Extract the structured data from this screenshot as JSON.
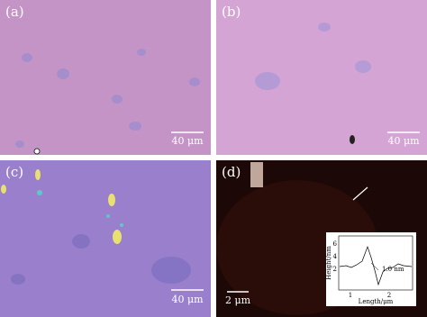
{
  "panels": [
    {
      "label": "(a)",
      "scale_bar": "40 μm"
    },
    {
      "label": "(b)",
      "scale_bar": "40 μm"
    },
    {
      "label": "(c)",
      "scale_bar": "40 μm"
    },
    {
      "label": "(d)",
      "scale_bar": "2 μm",
      "inset": {
        "y_label": "Height/nm",
        "x_label": "Length/μm",
        "y_ticks": [
          "6",
          "4",
          "2"
        ],
        "x_ticks": [
          "1",
          "2"
        ],
        "annotation": "1.0 nm"
      }
    }
  ]
}
